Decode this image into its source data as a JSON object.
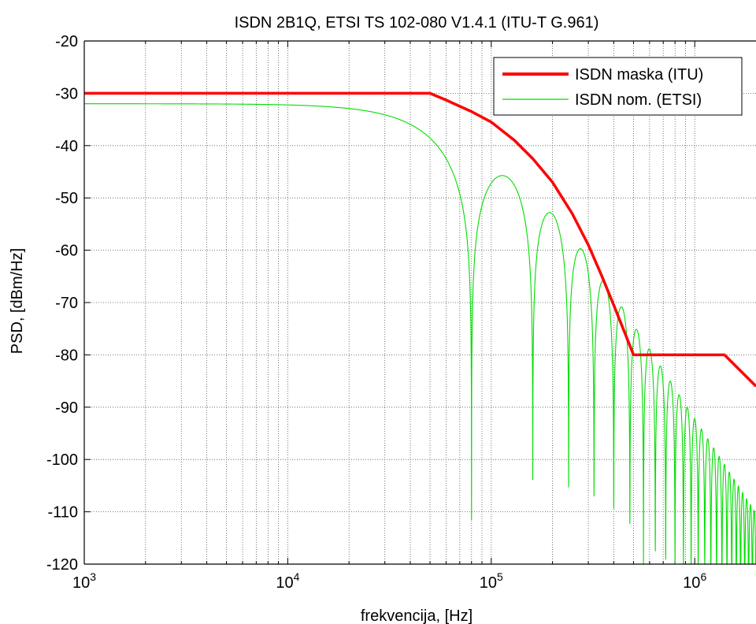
{
  "chart_data": {
    "type": "line",
    "title": "ISDN 2B1Q, ETSI TS 102-080 V1.4.1 (ITU-T G.961)",
    "xlabel": "frekvencija, [Hz]",
    "ylabel": "PSD, [dBm/Hz]",
    "xscale": "log",
    "xlim": [
      1000,
      2000000
    ],
    "ylim": [
      -120,
      -20
    ],
    "grid": true,
    "legend_position": "top-right",
    "x_ticks": [
      {
        "base": "10",
        "exp": "3",
        "value": 1000
      },
      {
        "base": "10",
        "exp": "4",
        "value": 10000
      },
      {
        "base": "10",
        "exp": "5",
        "value": 100000
      },
      {
        "base": "10",
        "exp": "6",
        "value": 1000000
      }
    ],
    "y_ticks": [
      "-20",
      "-30",
      "-40",
      "-50",
      "-60",
      "-70",
      "-80",
      "-90",
      "-100",
      "-110",
      "-120"
    ],
    "series": [
      {
        "name": "ISDN maska (ITU)",
        "color": "#ff0000",
        "x": [
          1000,
          50000,
          60000,
          80000,
          100000,
          130000,
          160000,
          200000,
          250000,
          300000,
          350000,
          400000,
          450000,
          500000,
          1400000,
          2000000
        ],
        "y": [
          -30,
          -30,
          -31.3,
          -33.5,
          -35.5,
          -39,
          -42.5,
          -47,
          -53,
          -59,
          -65,
          -70.5,
          -75.5,
          -80,
          -80,
          -86
        ]
      },
      {
        "name": "ISDN nom. (ETSI)",
        "color": "#00dd00",
        "model": "2B1Q sinc-squared PSD with 80 kHz symbol rate and 2nd-order low-pass at 196 kHz",
        "peak_dbm_hz": -32,
        "symbol_rate_hz": 80000,
        "filter_corner_hz": 196000,
        "x_start": 1000,
        "x_end": 2000000,
        "nulls_hz": [
          80000,
          160000,
          240000,
          320000,
          400000,
          480000,
          560000
        ]
      }
    ]
  }
}
